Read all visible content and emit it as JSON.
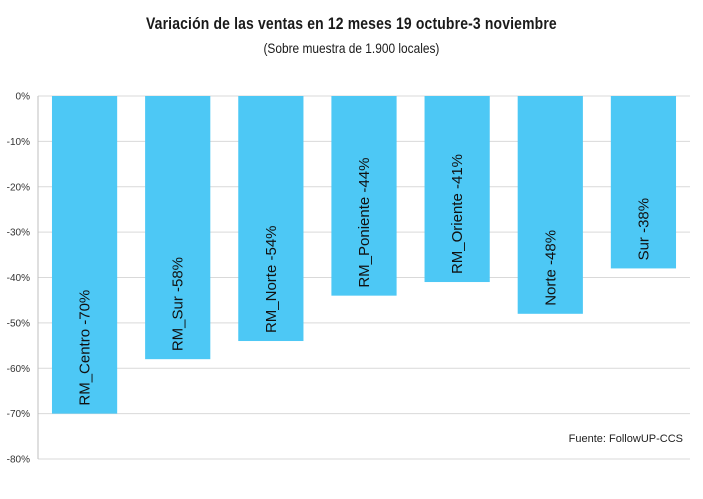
{
  "chart_data": {
    "type": "bar",
    "title": "Variación de las ventas en 12 meses 19 octubre-3 noviembre",
    "subtitle": "(Sobre muestra de 1.900 locales)",
    "categories": [
      "RM_Centro",
      "RM_Sur",
      "RM_Norte",
      "RM_Poniente",
      "RM_Oriente",
      "Norte",
      "Sur"
    ],
    "values": [
      -70,
      -58,
      -54,
      -44,
      -41,
      -48,
      -38
    ],
    "data_labels": [
      "RM_Centro -70%",
      "RM_Sur -58%",
      "RM_Norte -54%",
      "RM_Poniente -44%",
      "RM_Oriente -41%",
      "Norte -48%",
      "Sur -38%"
    ],
    "ylim": [
      -80,
      0
    ],
    "yticks": [
      "0%",
      "-10%",
      "-20%",
      "-30%",
      "-40%",
      "-50%",
      "-60%",
      "-70%",
      "-80%"
    ],
    "grid": true,
    "bar_color": "#4dc8f5",
    "source": "Fuente: FollowUP-CCS"
  }
}
